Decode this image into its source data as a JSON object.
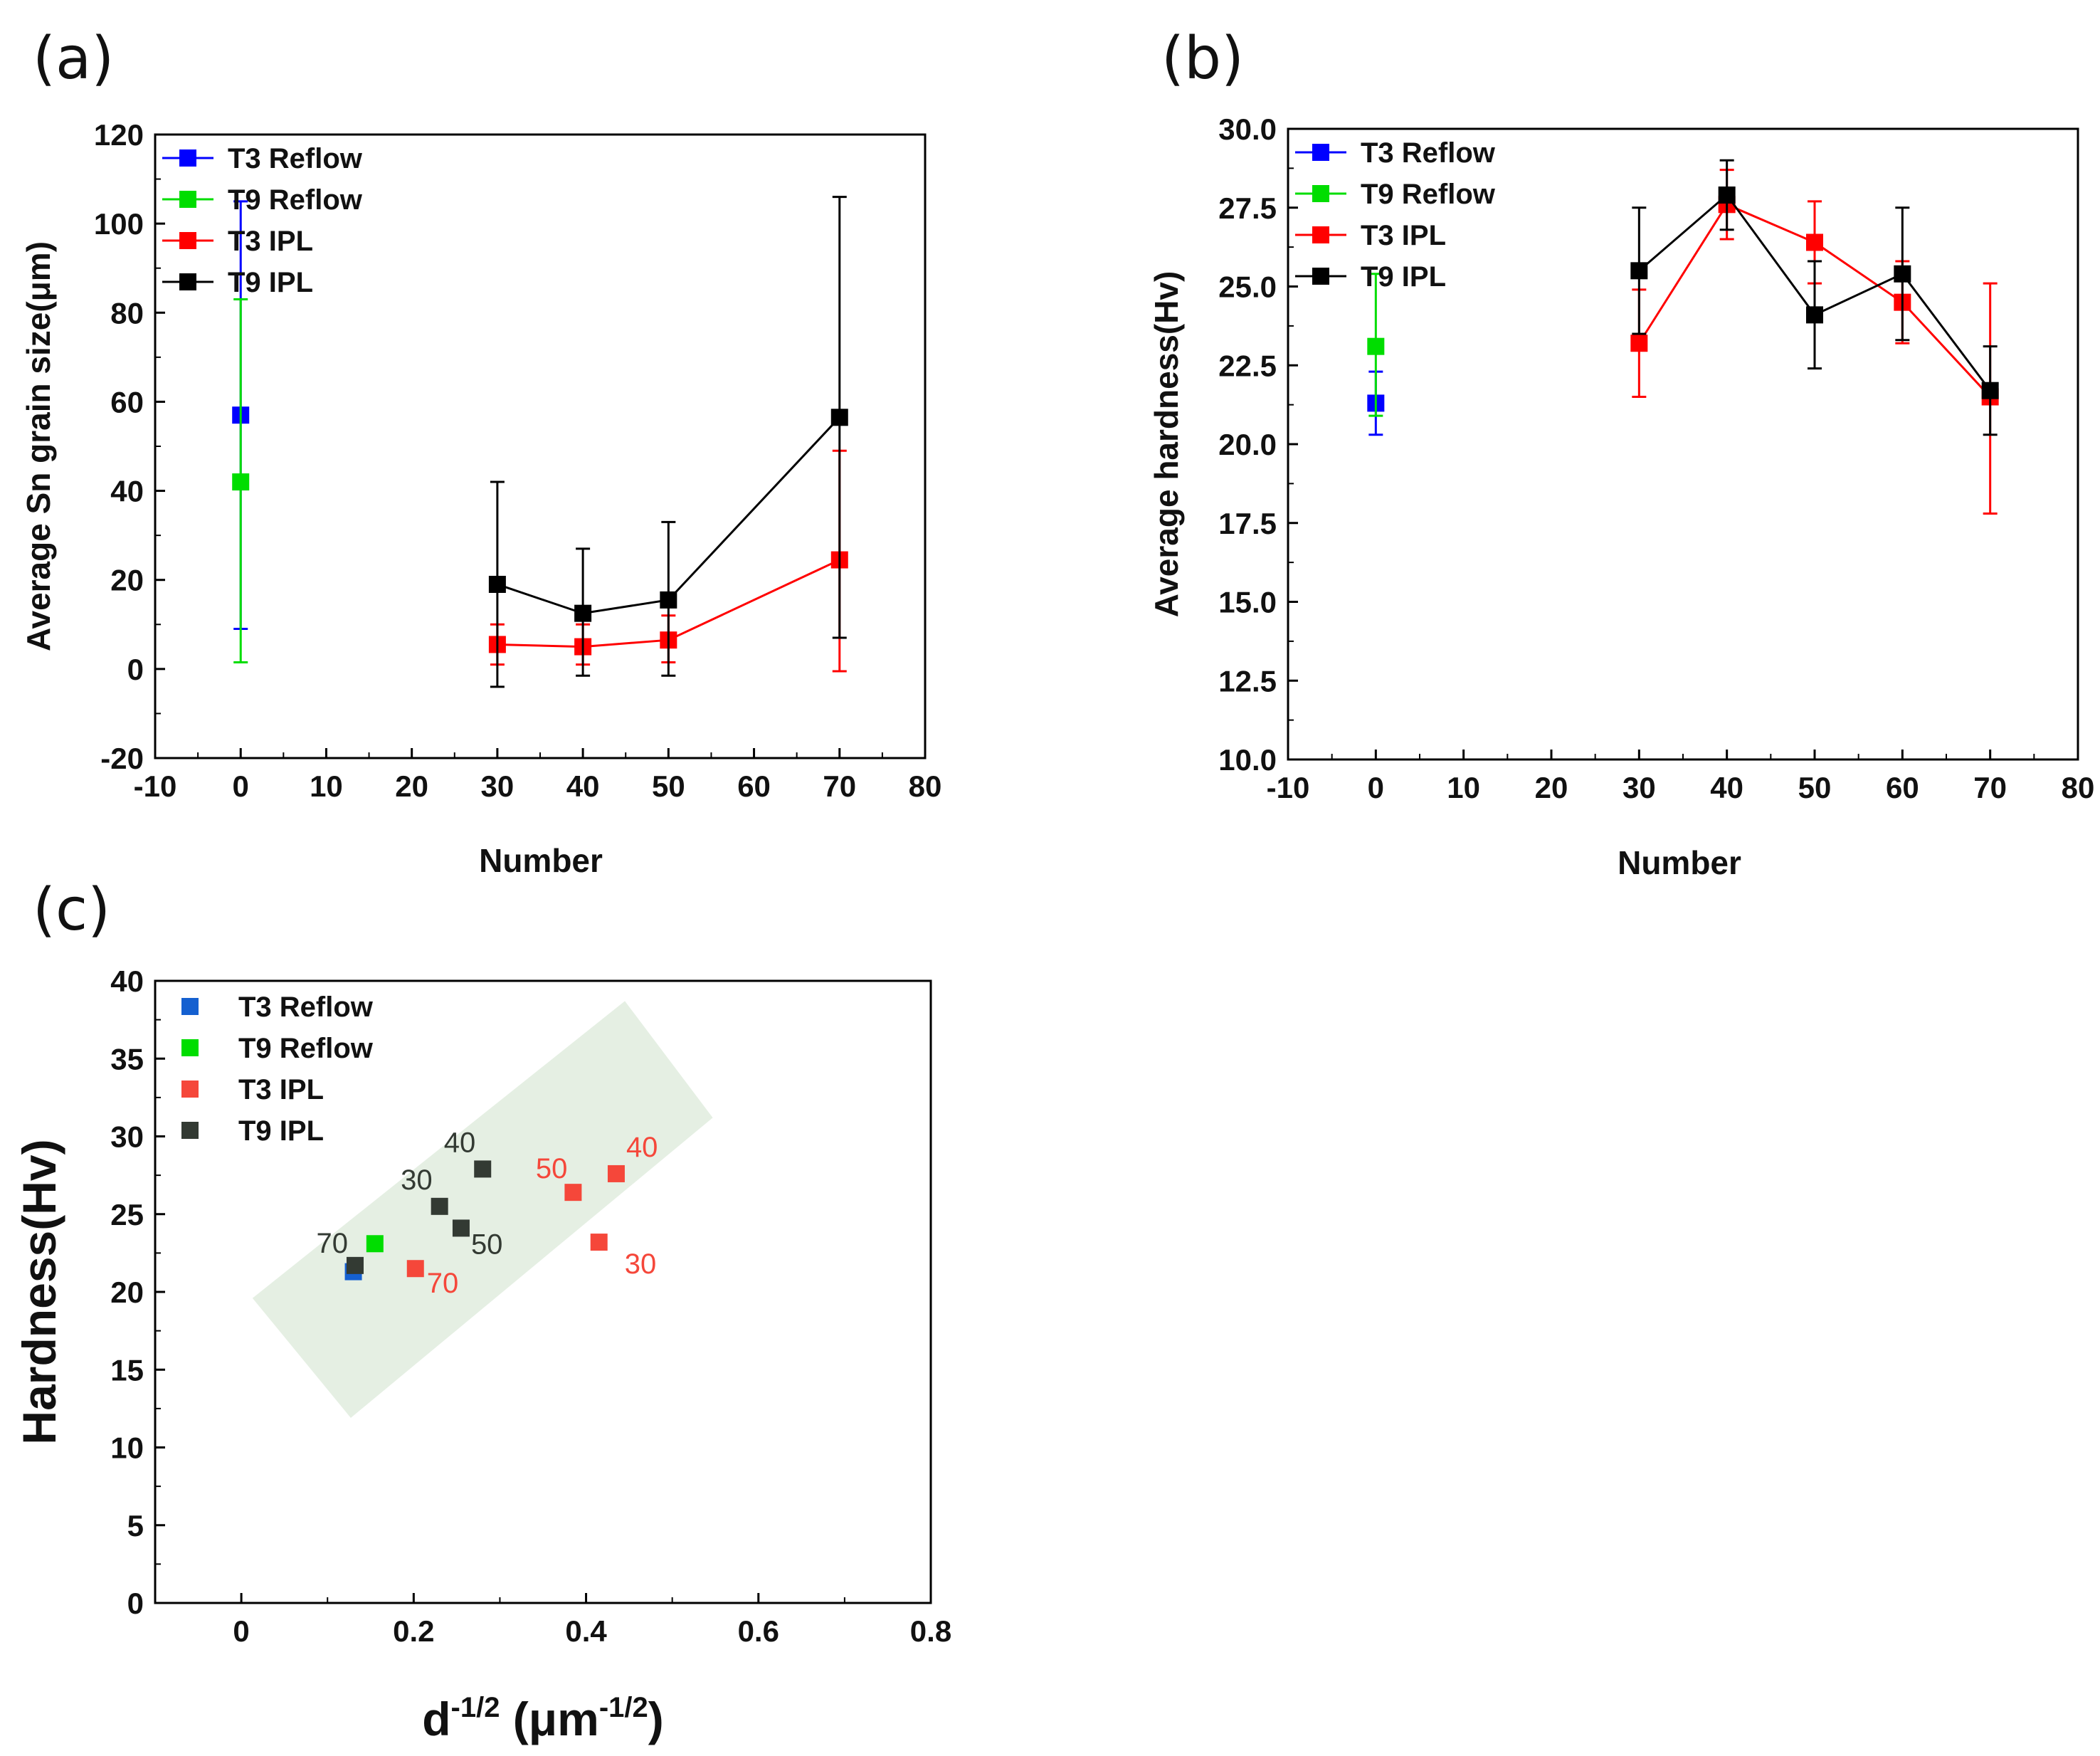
{
  "colors": {
    "T3 Reflow": "#0000ff",
    "T9 Reflow": "#00dd00",
    "T3 IPL": "#ff0000",
    "T9 IPL": "#000000",
    "T3 Reflow c": "#1560d0",
    "T3 IPL c": "#f5473a",
    "T9 IPL c": "#333a33",
    "band": "#e5efe3"
  },
  "chart_data": [
    {
      "panel": "(a)",
      "type": "line",
      "xlabel": "Number",
      "ylabel": "Average Sn grain size(μm)",
      "xlim": [
        -10,
        80
      ],
      "ylim": [
        -20,
        120
      ],
      "xticks": [
        "-10",
        "0",
        "10",
        "20",
        "30",
        "40",
        "50",
        "60",
        "70",
        "80"
      ],
      "yticks": [
        "-20",
        "0",
        "20",
        "40",
        "60",
        "80",
        "100",
        "120"
      ],
      "legend": [
        "T3 Reflow",
        "T9 Reflow",
        "T3 IPL",
        "T9 IPL"
      ],
      "legend_position": "top-left",
      "series": [
        {
          "name": "T3 Reflow",
          "x": [
            0
          ],
          "y": [
            57
          ],
          "err_low": [
            9
          ],
          "err_high": [
            105
          ]
        },
        {
          "name": "T9 Reflow",
          "x": [
            0
          ],
          "y": [
            42
          ],
          "err_low": [
            1.5
          ],
          "err_high": [
            83
          ]
        },
        {
          "name": "T3 IPL",
          "x": [
            30,
            40,
            50,
            70
          ],
          "y": [
            5.5,
            5,
            6.5,
            24.5
          ],
          "err_low": [
            1,
            1,
            1.5,
            -0.5
          ],
          "err_high": [
            10,
            10,
            12,
            49
          ]
        },
        {
          "name": "T9 IPL",
          "x": [
            30,
            40,
            50,
            70
          ],
          "y": [
            19,
            12.5,
            15.5,
            56.5
          ],
          "err_low": [
            -4,
            -1.5,
            -1.5,
            7
          ],
          "err_high": [
            42,
            27,
            33,
            106
          ]
        }
      ]
    },
    {
      "panel": "(b)",
      "type": "line",
      "xlabel": "Number",
      "ylabel": "Average hardness(Hv)",
      "xlim": [
        -10,
        80
      ],
      "ylim": [
        10,
        30
      ],
      "xticks": [
        "-10",
        "0",
        "10",
        "20",
        "30",
        "40",
        "50",
        "60",
        "70",
        "80"
      ],
      "yticks": [
        "10.0",
        "12.5",
        "15.0",
        "17.5",
        "20.0",
        "22.5",
        "25.0",
        "27.5",
        "30.0"
      ],
      "legend": [
        "T3 Reflow",
        "T9 Reflow",
        "T3 IPL",
        "T9 IPL"
      ],
      "legend_position": "top-left",
      "series": [
        {
          "name": "T3 Reflow",
          "x": [
            0
          ],
          "y": [
            21.3
          ],
          "err_low": [
            20.3
          ],
          "err_high": [
            22.3
          ]
        },
        {
          "name": "T9 Reflow",
          "x": [
            0
          ],
          "y": [
            23.1
          ],
          "err_low": [
            20.9
          ],
          "err_high": [
            25.4
          ]
        },
        {
          "name": "T3 IPL",
          "x": [
            30,
            40,
            50,
            60,
            70
          ],
          "y": [
            23.2,
            27.6,
            26.4,
            24.5,
            21.5
          ],
          "err_low": [
            21.5,
            26.5,
            25.1,
            23.2,
            17.8
          ],
          "err_high": [
            24.9,
            28.7,
            27.7,
            25.8,
            25.1
          ]
        },
        {
          "name": "T9 IPL",
          "x": [
            30,
            40,
            50,
            60,
            70
          ],
          "y": [
            25.5,
            27.9,
            24.1,
            25.4,
            21.7
          ],
          "err_low": [
            23.5,
            26.8,
            22.4,
            23.3,
            20.3
          ],
          "err_high": [
            27.5,
            29.0,
            25.8,
            27.5,
            23.1
          ]
        }
      ]
    },
    {
      "panel": "(c)",
      "type": "scatter",
      "xlabel": "d",
      "xlabel_sup": "-1/2",
      "xlabel_unit": " (μm",
      "xlabel_unit_sup": "-1/2",
      "xlabel_close": ")",
      "ylabel": "Hardness(Hv)",
      "xlim": [
        -0.1,
        0.8
      ],
      "ylim": [
        0,
        40
      ],
      "xticks": [
        "0",
        "0.2",
        "0.4",
        "0.6",
        "0.8"
      ],
      "yticks": [
        "0",
        "5",
        "10",
        "15",
        "20",
        "25",
        "30",
        "35",
        "40"
      ],
      "legend": [
        "T3 Reflow",
        "T9 Reflow",
        "T3 IPL",
        "T9 IPL"
      ],
      "legend_position": "top-left",
      "band": [
        [
          0.013,
          19.6
        ],
        [
          0.445,
          38.7
        ],
        [
          0.547,
          31.2
        ],
        [
          0.127,
          11.9
        ]
      ],
      "series": [
        {
          "name": "T3 Reflow",
          "color_key": "T3 Reflow c",
          "points": [
            {
              "x": 0.13,
              "y": 21.3,
              "label": ""
            }
          ]
        },
        {
          "name": "T9 Reflow",
          "color_key": "T9 Reflow",
          "points": [
            {
              "x": 0.155,
              "y": 23.1,
              "label": ""
            }
          ]
        },
        {
          "name": "T3 IPL",
          "color_key": "T3 IPL c",
          "points": [
            {
              "x": 0.415,
              "y": 23.2,
              "label": "30"
            },
            {
              "x": 0.435,
              "y": 27.6,
              "label": "40"
            },
            {
              "x": 0.385,
              "y": 26.4,
              "label": "50"
            },
            {
              "x": 0.202,
              "y": 21.5,
              "label": "70"
            }
          ]
        },
        {
          "name": "T9 IPL",
          "color_key": "T9 IPL c",
          "points": [
            {
              "x": 0.23,
              "y": 25.5,
              "label": "30"
            },
            {
              "x": 0.28,
              "y": 27.9,
              "label": "40"
            },
            {
              "x": 0.255,
              "y": 24.1,
              "label": "50"
            },
            {
              "x": 0.132,
              "y": 21.7,
              "label": "70"
            }
          ]
        }
      ]
    }
  ]
}
